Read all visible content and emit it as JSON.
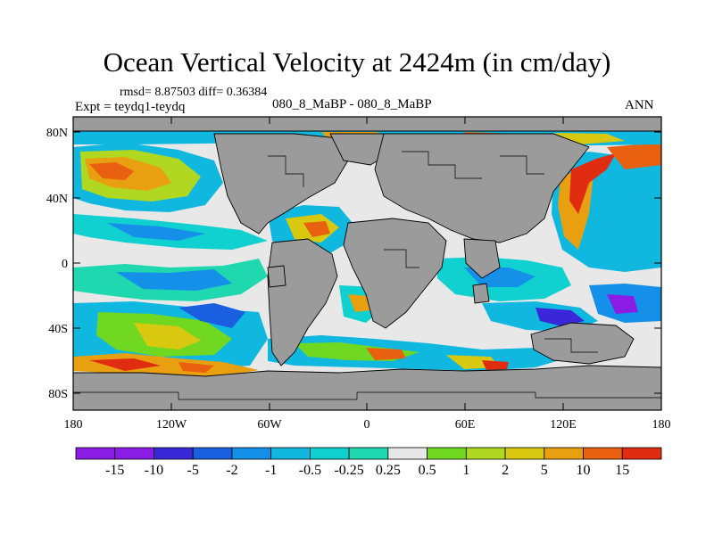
{
  "title": "Ocean Vertical Velocity at 2424m (in cm/day)",
  "stats_line": "rmsd= 8.87503 diff= 0.36384",
  "experiment": "Expt = teydq1-teydq",
  "comparison": "080_8_MaBP - 080_8_MaBP",
  "season": "ANN",
  "axes": {
    "lat_labels": [
      "80N",
      "40N",
      "0",
      "40S",
      "80S"
    ],
    "lon_labels": [
      "180",
      "120W",
      "60W",
      "0",
      "60E",
      "120E",
      "180"
    ]
  },
  "colorbar": {
    "labels": [
      "-15",
      "-10",
      "-5",
      "-2",
      "-1",
      "-0.5",
      "-0.25",
      "0.25",
      "0.5",
      "1",
      "2",
      "5",
      "10",
      "15"
    ],
    "colors": [
      "#8a1ce6",
      "#3a28d8",
      "#1a5fe0",
      "#1590e8",
      "#10b8e0",
      "#10d0d0",
      "#20d8b0",
      "#e8e8e8",
      "#70d820",
      "#b0d820",
      "#d8c810",
      "#e8a010",
      "#e86010",
      "#e02c10"
    ]
  },
  "land_color": "#9b9b9b",
  "ocean_neutral_color": "#e8e8e8"
}
